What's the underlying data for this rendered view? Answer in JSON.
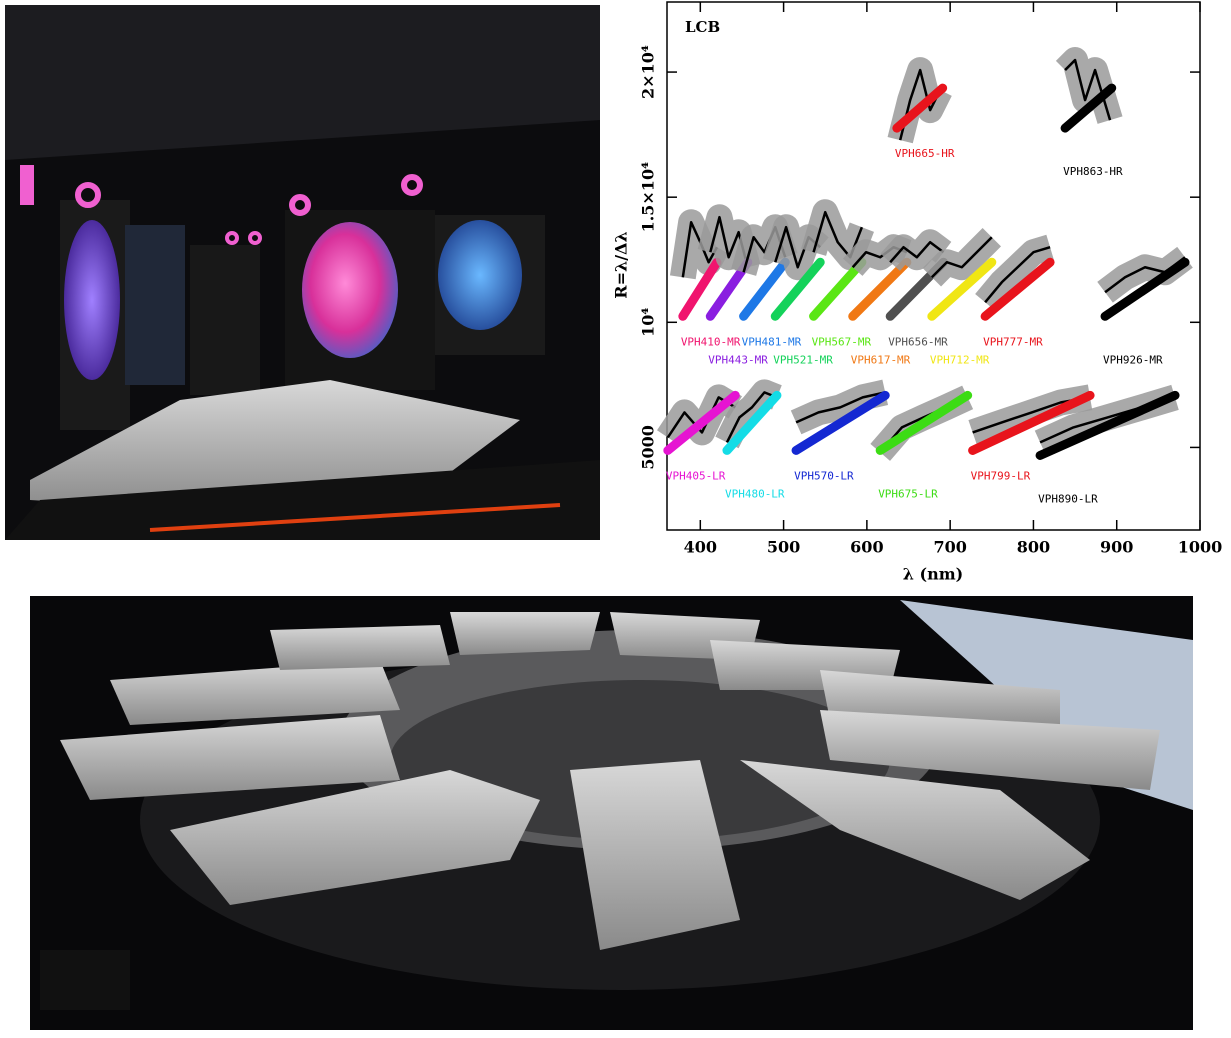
{
  "chart_data": {
    "type": "line",
    "annotation": "LCB",
    "xlabel": "λ (nm)",
    "ylabel": "R=λ/Δλ",
    "xlim": [
      360,
      1000
    ],
    "ylim": [
      1700,
      22800
    ],
    "xticks": [
      400,
      500,
      600,
      700,
      800,
      900,
      1000
    ],
    "yticks": [
      5000,
      {
        "value": 10000,
        "label": "10⁴"
      },
      {
        "value": 15000,
        "label": "1.5×10⁴"
      },
      {
        "value": 20000,
        "label": "2×10⁴"
      }
    ],
    "series": [
      {
        "name": "VPH665-HR",
        "color": "#e8141c",
        "model_x": [
          636,
          691
        ],
        "model_values": [
          17760,
          19360
        ],
        "x": [
          640,
          652,
          664,
          676,
          688
        ],
        "values": [
          17280,
          18880,
          20080,
          18480,
          19280
        ]
      },
      {
        "name": "VPH863-HR",
        "color": "#000000",
        "model_x": [
          838,
          894
        ],
        "model_values": [
          17760,
          19360
        ],
        "x": [
          838,
          850,
          862,
          874,
          892
        ],
        "values": [
          20080,
          20480,
          18880,
          20080,
          18080
        ]
      },
      {
        "name": "VPH410-MR",
        "color": "#f0146e",
        "model_x": [
          379,
          420
        ],
        "model_values": [
          10240,
          12400
        ],
        "x": [
          379,
          389,
          400,
          410,
          420
        ],
        "values": [
          11800,
          14000,
          13200,
          12400,
          13000
        ]
      },
      {
        "name": "VPH443-MR",
        "color": "#8a1ee0",
        "model_x": [
          412,
          457
        ],
        "model_values": [
          10240,
          12400
        ],
        "x": [
          412,
          423,
          434,
          446,
          457
        ],
        "values": [
          12800,
          14200,
          12600,
          13600,
          12200
        ]
      },
      {
        "name": "VPH481-MR",
        "color": "#1e78e6",
        "model_x": [
          452,
          502
        ],
        "model_values": [
          10240,
          12400
        ],
        "x": [
          452,
          464,
          477,
          490,
          502
        ],
        "values": [
          12000,
          13400,
          12800,
          13800,
          12600
        ]
      },
      {
        "name": "VPH521-MR",
        "color": "#14d25a",
        "model_x": [
          490,
          544
        ],
        "model_values": [
          10240,
          12400
        ],
        "x": [
          490,
          503,
          517,
          530,
          544
        ],
        "values": [
          12400,
          13800,
          12200,
          13400,
          13000
        ]
      },
      {
        "name": "VPH567-MR",
        "color": "#5ae614",
        "model_x": [
          536,
          594
        ],
        "model_values": [
          10240,
          12400
        ],
        "x": [
          536,
          550,
          565,
          580,
          594
        ],
        "values": [
          12800,
          14400,
          13200,
          12600,
          13800
        ]
      },
      {
        "name": "VPH617-MR",
        "color": "#f07814",
        "model_x": [
          583,
          648
        ],
        "model_values": [
          10240,
          12400
        ],
        "x": [
          583,
          599,
          616,
          632,
          648
        ],
        "values": [
          12200,
          12800,
          12600,
          13000,
          12800
        ]
      },
      {
        "name": "VPH656-MR",
        "color": "#505050",
        "model_x": [
          628,
          692
        ],
        "model_values": [
          10240,
          12400
        ],
        "x": [
          628,
          644,
          660,
          676,
          692
        ],
        "values": [
          12400,
          13000,
          12600,
          13200,
          12800
        ]
      },
      {
        "name": "VPH712-MR",
        "color": "#f0e614",
        "model_x": [
          678,
          750
        ],
        "model_values": [
          10240,
          12400
        ],
        "x": [
          678,
          696,
          714,
          732,
          750
        ],
        "values": [
          11800,
          12400,
          12200,
          12800,
          13400
        ]
      },
      {
        "name": "VPH777-MR",
        "color": "#e8141c",
        "model_x": [
          742,
          820
        ],
        "model_values": [
          10240,
          12400
        ],
        "x": [
          742,
          762,
          781,
          800,
          820
        ],
        "values": [
          10800,
          11600,
          12200,
          12800,
          13000
        ]
      },
      {
        "name": "VPH926-MR",
        "color": "#000000",
        "model_x": [
          886,
          982
        ],
        "model_values": [
          10240,
          12400
        ],
        "x": [
          886,
          910,
          934,
          958,
          982
        ],
        "values": [
          11200,
          11800,
          12200,
          12000,
          12600
        ]
      },
      {
        "name": "VPH405-LR",
        "color": "#e614d2",
        "model_x": [
          361,
          442
        ],
        "model_values": [
          4880,
          7080
        ],
        "x": [
          361,
          381,
          402,
          422,
          442
        ],
        "values": [
          5400,
          6400,
          5600,
          7000,
          6600
        ]
      },
      {
        "name": "VPH480-LR",
        "color": "#14dce6",
        "model_x": [
          432,
          492
        ],
        "model_values": [
          4880,
          7080
        ],
        "x": [
          432,
          447,
          462,
          477,
          492
        ],
        "values": [
          5200,
          6200,
          6600,
          7200,
          7000
        ]
      },
      {
        "name": "VPH570-LR",
        "color": "#1428d2",
        "model_x": [
          515,
          622
        ],
        "model_values": [
          4880,
          7080
        ],
        "x": [
          515,
          542,
          568,
          595,
          622
        ],
        "values": [
          6000,
          6400,
          6600,
          7000,
          7200
        ]
      },
      {
        "name": "VPH675-LR",
        "color": "#3cdc14",
        "model_x": [
          616,
          721
        ],
        "model_values": [
          4880,
          7080
        ],
        "x": [
          616,
          642,
          668,
          695,
          721
        ],
        "values": [
          4800,
          5800,
          6200,
          6600,
          7000
        ]
      },
      {
        "name": "VPH799-LR",
        "color": "#e8141c",
        "model_x": [
          727,
          868
        ],
        "model_values": [
          4880,
          7080
        ],
        "x": [
          727,
          762,
          798,
          833,
          868
        ],
        "values": [
          5600,
          6000,
          6400,
          6800,
          7000
        ]
      },
      {
        "name": "VPH890-LR",
        "color": "#000000",
        "model_x": [
          808,
          970
        ],
        "model_values": [
          4680,
          7080
        ],
        "x": [
          808,
          848,
          889,
          930,
          970
        ],
        "values": [
          5200,
          5800,
          6200,
          6600,
          7000
        ]
      }
    ]
  }
}
